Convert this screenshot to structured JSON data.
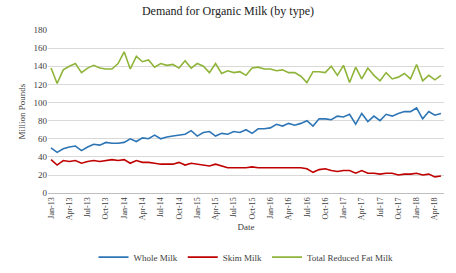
{
  "chart_data": {
    "type": "line",
    "title": "Demand for Organic Milk (by type)",
    "x_label": "Date",
    "y_label": "Million Pounds",
    "categories": [
      "Jan-13",
      null,
      null,
      "Apr-13",
      null,
      null,
      "Jul-13",
      null,
      null,
      "Oct-13",
      null,
      null,
      "Jan-14",
      null,
      null,
      "Apr-14",
      null,
      null,
      "Jul-14",
      null,
      null,
      "Oct-14",
      null,
      null,
      "Jan-15",
      null,
      null,
      "Apr-15",
      null,
      null,
      "Jul-15",
      null,
      null,
      "Oct-15",
      null,
      null,
      "Jan-16",
      null,
      null,
      "Apr-16",
      null,
      null,
      "Jul-16",
      null,
      null,
      "Oct-16",
      null,
      null,
      "Jan-17",
      null,
      null,
      "Apr-17",
      null,
      null,
      "Jul-17",
      null,
      null,
      "Oct-17",
      null,
      null,
      "Jan-18",
      null,
      null,
      "Apr-18",
      null
    ],
    "series": [
      {
        "name": "Whole Milk",
        "color": "#2e75b6",
        "line_style": "solid",
        "values": [
          50,
          45,
          49,
          51,
          52,
          47,
          51,
          54,
          53,
          56,
          55,
          55,
          56,
          60,
          57,
          61,
          60,
          64,
          60,
          62,
          63,
          64,
          65,
          69,
          63,
          67,
          68,
          63,
          66,
          65,
          68,
          67,
          70,
          66,
          71,
          71,
          72,
          76,
          74,
          77,
          75,
          77,
          80,
          74,
          82,
          82,
          81,
          85,
          84,
          87,
          76,
          88,
          79,
          85,
          80,
          87,
          85,
          88,
          90,
          90,
          94,
          82,
          90,
          86,
          88
        ]
      },
      {
        "name": "Skim Milk",
        "color": "#c00000",
        "line_style": "solid",
        "values": [
          37,
          31,
          36,
          35,
          36,
          33,
          35,
          36,
          35,
          36,
          37,
          36,
          37,
          33,
          36,
          34,
          34,
          33,
          32,
          32,
          32,
          34,
          31,
          33,
          32,
          31,
          30,
          32,
          30,
          28,
          28,
          28,
          28,
          29,
          28,
          28,
          28,
          28,
          28,
          28,
          28,
          28,
          27,
          23,
          26,
          27,
          25,
          24,
          25,
          25,
          22,
          25,
          22,
          22,
          21,
          22,
          22,
          20,
          21,
          21,
          22,
          20,
          21,
          18,
          19
        ]
      },
      {
        "name": "Total Reduced Fat Milk",
        "color": "#8fb43a",
        "line_style": "solid",
        "values": [
          138,
          121,
          136,
          140,
          143,
          133,
          138,
          141,
          138,
          137,
          137,
          143,
          156,
          137,
          151,
          145,
          147,
          139,
          143,
          141,
          142,
          138,
          146,
          138,
          143,
          140,
          133,
          143,
          132,
          135,
          133,
          134,
          130,
          138,
          139,
          137,
          137,
          135,
          136,
          133,
          133,
          129,
          122,
          134,
          134,
          133,
          140,
          130,
          141,
          122,
          139,
          126,
          138,
          130,
          124,
          133,
          126,
          128,
          132,
          126,
          142,
          124,
          130,
          125,
          130
        ]
      }
    ],
    "ylim": [
      0,
      180
    ],
    "yticks": [
      0,
      20,
      40,
      60,
      80,
      100,
      120,
      140,
      160,
      180
    ],
    "grid": true,
    "legend": "bottom"
  }
}
